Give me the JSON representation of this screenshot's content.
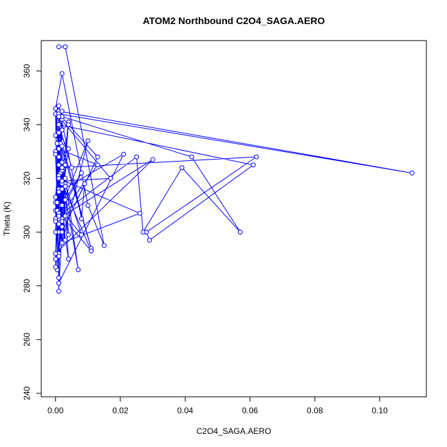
{
  "chart_data": {
    "type": "scatter",
    "title": "ATOM2 Northbound C2O4_SAGA.AERO",
    "xlabel": "C2O4_SAGA.AERO",
    "ylabel": "Theta (K)",
    "xlim": [
      0,
      0.11
    ],
    "ylim": [
      240,
      370
    ],
    "x_ticks": [
      0.0,
      0.02,
      0.04,
      0.06,
      0.08,
      0.1
    ],
    "x_tick_labels": [
      "0.00",
      "0.02",
      "0.04",
      "0.06",
      "0.08",
      "0.10"
    ],
    "y_ticks": [
      240,
      260,
      280,
      300,
      320,
      340,
      360
    ],
    "y_tick_labels": [
      "240",
      "260",
      "280",
      "300",
      "320",
      "340",
      "360"
    ],
    "grid": false,
    "connected": true,
    "color": "#0000ff",
    "series": [
      {
        "x": [
          0.001,
          0.003,
          0.015,
          0.01,
          0.002,
          0.0,
          0.001,
          0.002,
          0.0,
          0.001,
          0.004,
          0.001,
          0.0,
          0.002,
          0.0015,
          0.001,
          0.003,
          0.005,
          0.001,
          0.002,
          0.0,
          0.001,
          0.011,
          0.0015,
          0.0005,
          0.001,
          0.002,
          0.0018,
          0.004,
          0.001,
          0.002,
          0.0,
          0.001,
          0.007,
          0.003,
          0.002,
          0.0005,
          0.011,
          0.001,
          0.002,
          0.004,
          0.001,
          0.11,
          0.001,
          0.0005,
          0.001,
          0.0,
          0.008,
          0.003,
          0.002,
          0.0,
          0.001,
          0.0005,
          0.002,
          0.001,
          0.01,
          0.001,
          0.0,
          0.003,
          0.002,
          0.062,
          0.028,
          0.029,
          0.061,
          0.001,
          0.002,
          0.0,
          0.0005,
          0.001,
          0.003,
          0.001,
          0.03,
          0.0,
          0.001,
          0.002,
          0.0,
          0.001,
          0.021,
          0.001,
          0.002,
          0.001,
          0.0,
          0.002,
          0.042,
          0.057,
          0.039,
          0.027,
          0.025,
          0.001,
          0.008,
          0.003,
          0.002,
          0.026,
          0.001,
          0.004,
          0.002,
          0.0,
          0.001,
          0.008,
          0.009,
          0.002,
          0.013,
          0.001,
          0.002,
          0.004,
          0.0,
          0.001,
          0.003,
          0.002,
          0.017,
          0.001,
          0.0,
          0.013,
          0.001,
          0.002
        ],
        "y": [
          369,
          369,
          295,
          310,
          359,
          346,
          283,
          342,
          313,
          304,
          331,
          337,
          308,
          296,
          322,
          278,
          325,
          324,
          340,
          300,
          290,
          337,
          294,
          333,
          286,
          316,
          326,
          318,
          341,
          292,
          319,
          346,
          328,
          286,
          320,
          323,
          308,
          293,
          321,
          305,
          290,
          344,
          322,
          345,
          308,
          300,
          311,
          299,
          318,
          304,
          287,
          315,
          333,
          345,
          291,
          334,
          307,
          330,
          317,
          324,
          328,
          300,
          297,
          325,
          340,
          302,
          329,
          311,
          331,
          297,
          305,
          327,
          292,
          303,
          318,
          344,
          281,
          329,
          315,
          310,
          340,
          305,
          343,
          328,
          300,
          324,
          300,
          328,
          306,
          322,
          312,
          296,
          307,
          320,
          299,
          332,
          336,
          347,
          305,
          318,
          300,
          328,
          344,
          338,
          340,
          300,
          325,
          306,
          319,
          320,
          343,
          304,
          325,
          331,
          316
        ]
      }
    ]
  }
}
